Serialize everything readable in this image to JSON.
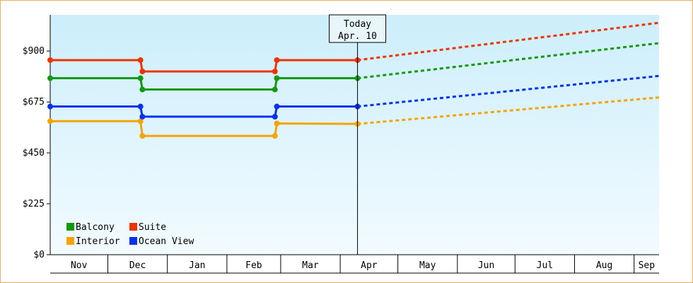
{
  "chart_data": {
    "type": "line",
    "title": "",
    "xlabel": "",
    "ylabel": "",
    "y_ticks": [
      "$0",
      "$225",
      "$450",
      "$675",
      "$900"
    ],
    "y_tick_values": [
      0,
      225,
      450,
      675,
      900
    ],
    "ylim": [
      0,
      1060
    ],
    "months": [
      {
        "label": "Nov",
        "start": 0
      },
      {
        "label": "Dec",
        "start": 30
      },
      {
        "label": "Jan",
        "start": 61
      },
      {
        "label": "Feb",
        "start": 92
      },
      {
        "label": "Mar",
        "start": 120
      },
      {
        "label": "Apr",
        "start": 151
      },
      {
        "label": "May",
        "start": 181
      },
      {
        "label": "Jun",
        "start": 212
      },
      {
        "label": "Jul",
        "start": 242
      },
      {
        "label": "Aug",
        "start": 273
      },
      {
        "label": "Sep",
        "start": 304
      }
    ],
    "x_end": 317,
    "today": {
      "line1": "Today",
      "line2": "Apr. 10",
      "x": 160
    },
    "grid": false,
    "legend_position": "bottom-left",
    "legend_rows": [
      [
        "Balcony",
        "Suite"
      ],
      [
        "Interior",
        "Ocean View"
      ]
    ],
    "series": [
      {
        "name": "Balcony",
        "color": "#119911",
        "steps": [
          [
            0,
            780
          ],
          [
            47,
            780
          ],
          [
            48,
            730
          ],
          [
            117,
            730
          ],
          [
            118,
            780
          ],
          [
            160,
            780
          ]
        ],
        "forecast_end": 935
      },
      {
        "name": "Suite",
        "color": "#ee3300",
        "steps": [
          [
            0,
            860
          ],
          [
            47,
            860
          ],
          [
            48,
            810
          ],
          [
            117,
            810
          ],
          [
            118,
            860
          ],
          [
            160,
            860
          ]
        ],
        "forecast_end": 1025
      },
      {
        "name": "Interior",
        "color": "#f5a300",
        "steps": [
          [
            0,
            590
          ],
          [
            47,
            590
          ],
          [
            48,
            525
          ],
          [
            117,
            525
          ],
          [
            118,
            580
          ],
          [
            160,
            578
          ]
        ],
        "forecast_end": 695
      },
      {
        "name": "Ocean View",
        "color": "#0033ee",
        "steps": [
          [
            0,
            655
          ],
          [
            47,
            655
          ],
          [
            48,
            610
          ],
          [
            117,
            610
          ],
          [
            118,
            655
          ],
          [
            160,
            655
          ]
        ],
        "forecast_end": 790
      }
    ]
  }
}
